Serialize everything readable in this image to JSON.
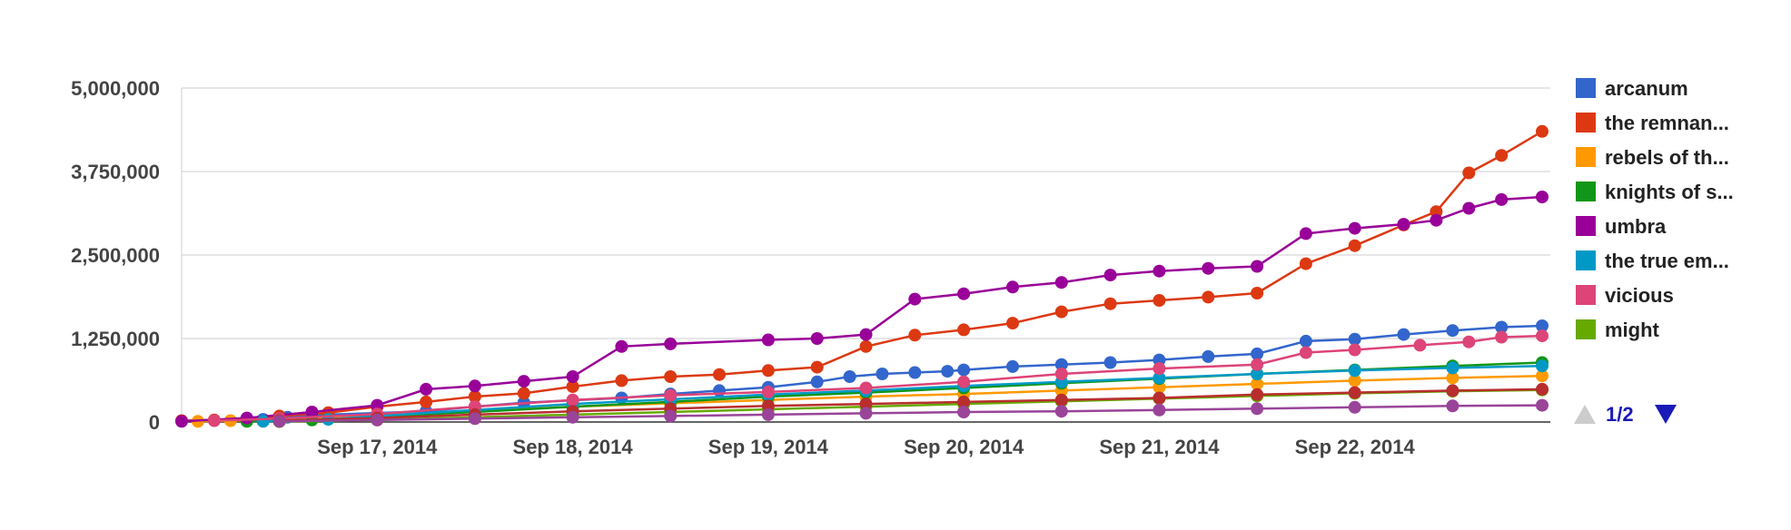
{
  "chart_data": {
    "type": "line",
    "title": "",
    "xlabel": "",
    "ylabel": "",
    "x_tick_labels": [
      "Sep 17, 2014",
      "Sep 18, 2014",
      "Sep 19, 2014",
      "Sep 20, 2014",
      "Sep 21, 2014",
      "Sep 22, 2014"
    ],
    "y_tick_labels": [
      "0",
      "1,250,000",
      "2,500,000",
      "3,750,000",
      "5,000,000"
    ],
    "y_ticks": [
      0,
      1250000,
      2500000,
      3750000,
      5000000
    ],
    "ylim": [
      0,
      5000000
    ],
    "xlim": [
      "2014-09-16",
      "2014-09-22"
    ],
    "grid": true,
    "legend_position": "right",
    "legend_page": "1/2",
    "series": [
      {
        "name": "arcanum",
        "color": "#3366cc",
        "points": [
          [
            "2014-09-16T08:00",
            20000
          ],
          [
            "2014-09-16T10:00",
            40000
          ],
          [
            "2014-09-16T13:00",
            70000
          ],
          [
            "2014-09-16T18:00",
            110000
          ],
          [
            "2014-09-17T06:00",
            160000
          ],
          [
            "2014-09-17T12:00",
            230000
          ],
          [
            "2014-09-17T18:00",
            290000
          ],
          [
            "2014-09-18T06:00",
            360000
          ],
          [
            "2014-09-18T12:00",
            420000
          ],
          [
            "2014-09-18T18:00",
            470000
          ],
          [
            "2014-09-19T00:00",
            520000
          ],
          [
            "2014-09-19T06:00",
            600000
          ],
          [
            "2014-09-19T10:00",
            680000
          ],
          [
            "2014-09-19T14:00",
            720000
          ],
          [
            "2014-09-19T18:00",
            740000
          ],
          [
            "2014-09-19T22:00",
            760000
          ],
          [
            "2014-09-20T00:00",
            780000
          ],
          [
            "2014-09-20T06:00",
            830000
          ],
          [
            "2014-09-20T12:00",
            860000
          ],
          [
            "2014-09-20T18:00",
            890000
          ],
          [
            "2014-09-21T00:00",
            930000
          ],
          [
            "2014-09-21T06:00",
            980000
          ],
          [
            "2014-09-21T12:00",
            1020000
          ],
          [
            "2014-09-21T18:00",
            1210000
          ],
          [
            "2014-09-22T00:00",
            1240000
          ],
          [
            "2014-09-22T06:00",
            1310000
          ],
          [
            "2014-09-22T12:00",
            1370000
          ],
          [
            "2014-09-22T18:00",
            1420000
          ],
          [
            "2014-09-22T23:00",
            1440000
          ]
        ]
      },
      {
        "name": "the remnan...",
        "color": "#dc3912",
        "points": [
          [
            "2014-09-16T00:00",
            20000
          ],
          [
            "2014-09-16T04:00",
            30000
          ],
          [
            "2014-09-16T08:00",
            50000
          ],
          [
            "2014-09-16T12:00",
            90000
          ],
          [
            "2014-09-16T18:00",
            140000
          ],
          [
            "2014-09-17T00:00",
            230000
          ],
          [
            "2014-09-17T06:00",
            300000
          ],
          [
            "2014-09-17T12:00",
            380000
          ],
          [
            "2014-09-17T18:00",
            430000
          ],
          [
            "2014-09-18T00:00",
            530000
          ],
          [
            "2014-09-18T06:00",
            620000
          ],
          [
            "2014-09-18T12:00",
            680000
          ],
          [
            "2014-09-18T18:00",
            710000
          ],
          [
            "2014-09-19T00:00",
            770000
          ],
          [
            "2014-09-19T06:00",
            820000
          ],
          [
            "2014-09-19T12:00",
            1130000
          ],
          [
            "2014-09-19T18:00",
            1300000
          ],
          [
            "2014-09-20T00:00",
            1380000
          ],
          [
            "2014-09-20T06:00",
            1480000
          ],
          [
            "2014-09-20T12:00",
            1650000
          ],
          [
            "2014-09-20T18:00",
            1770000
          ],
          [
            "2014-09-21T00:00",
            1820000
          ],
          [
            "2014-09-21T06:00",
            1870000
          ],
          [
            "2014-09-21T12:00",
            1930000
          ],
          [
            "2014-09-21T18:00",
            2370000
          ],
          [
            "2014-09-22T00:00",
            2640000
          ],
          [
            "2014-09-22T06:00",
            2950000
          ],
          [
            "2014-09-22T10:00",
            3150000
          ],
          [
            "2014-09-22T14:00",
            3730000
          ],
          [
            "2014-09-22T18:00",
            3990000
          ],
          [
            "2014-09-22T23:00",
            4350000
          ]
        ]
      },
      {
        "name": "rebels of th...",
        "color": "#ff9900",
        "points": [
          [
            "2014-09-16T02:00",
            10000
          ],
          [
            "2014-09-16T06:00",
            20000
          ],
          [
            "2014-09-16T12:00",
            40000
          ],
          [
            "2014-09-17T00:00",
            100000
          ],
          [
            "2014-09-17T12:00",
            160000
          ],
          [
            "2014-09-18T00:00",
            230000
          ],
          [
            "2014-09-18T12:00",
            280000
          ],
          [
            "2014-09-19T00:00",
            330000
          ],
          [
            "2014-09-19T12:00",
            380000
          ],
          [
            "2014-09-20T00:00",
            420000
          ],
          [
            "2014-09-20T12:00",
            470000
          ],
          [
            "2014-09-21T00:00",
            520000
          ],
          [
            "2014-09-21T12:00",
            570000
          ],
          [
            "2014-09-22T00:00",
            620000
          ],
          [
            "2014-09-22T12:00",
            660000
          ],
          [
            "2014-09-22T23:00",
            690000
          ]
        ]
      },
      {
        "name": "knights of s...",
        "color": "#109618",
        "points": [
          [
            "2014-09-16T08:00",
            10000
          ],
          [
            "2014-09-16T16:00",
            30000
          ],
          [
            "2014-09-17T00:00",
            80000
          ],
          [
            "2014-09-17T12:00",
            150000
          ],
          [
            "2014-09-18T00:00",
            230000
          ],
          [
            "2014-09-18T12:00",
            300000
          ],
          [
            "2014-09-19T00:00",
            380000
          ],
          [
            "2014-09-19T12:00",
            440000
          ],
          [
            "2014-09-20T00:00",
            510000
          ],
          [
            "2014-09-20T12:00",
            580000
          ],
          [
            "2014-09-21T00:00",
            650000
          ],
          [
            "2014-09-21T12:00",
            720000
          ],
          [
            "2014-09-22T00:00",
            780000
          ],
          [
            "2014-09-22T12:00",
            840000
          ],
          [
            "2014-09-22T23:00",
            890000
          ]
        ]
      },
      {
        "name": "umbra",
        "color": "#990099",
        "points": [
          [
            "2014-09-16T00:00",
            10000
          ],
          [
            "2014-09-16T08:00",
            60000
          ],
          [
            "2014-09-16T16:00",
            150000
          ],
          [
            "2014-09-17T00:00",
            250000
          ],
          [
            "2014-09-17T06:00",
            490000
          ],
          [
            "2014-09-17T12:00",
            540000
          ],
          [
            "2014-09-17T18:00",
            610000
          ],
          [
            "2014-09-18T00:00",
            680000
          ],
          [
            "2014-09-18T06:00",
            1130000
          ],
          [
            "2014-09-18T12:00",
            1170000
          ],
          [
            "2014-09-19T00:00",
            1230000
          ],
          [
            "2014-09-19T06:00",
            1250000
          ],
          [
            "2014-09-19T12:00",
            1310000
          ],
          [
            "2014-09-19T18:00",
            1840000
          ],
          [
            "2014-09-20T00:00",
            1920000
          ],
          [
            "2014-09-20T06:00",
            2020000
          ],
          [
            "2014-09-20T12:00",
            2090000
          ],
          [
            "2014-09-20T18:00",
            2200000
          ],
          [
            "2014-09-21T00:00",
            2260000
          ],
          [
            "2014-09-21T06:00",
            2300000
          ],
          [
            "2014-09-21T12:00",
            2330000
          ],
          [
            "2014-09-21T18:00",
            2820000
          ],
          [
            "2014-09-22T00:00",
            2900000
          ],
          [
            "2014-09-22T06:00",
            2960000
          ],
          [
            "2014-09-22T10:00",
            3020000
          ],
          [
            "2014-09-22T14:00",
            3200000
          ],
          [
            "2014-09-22T18:00",
            3330000
          ],
          [
            "2014-09-22T23:00",
            3370000
          ]
        ]
      },
      {
        "name": "the true em...",
        "color": "#0099c6",
        "points": [
          [
            "2014-09-16T10:00",
            10000
          ],
          [
            "2014-09-16T18:00",
            40000
          ],
          [
            "2014-09-17T00:00",
            90000
          ],
          [
            "2014-09-17T12:00",
            180000
          ],
          [
            "2014-09-18T00:00",
            270000
          ],
          [
            "2014-09-18T12:00",
            340000
          ],
          [
            "2014-09-19T00:00",
            410000
          ],
          [
            "2014-09-19T12:00",
            470000
          ],
          [
            "2014-09-20T00:00",
            540000
          ],
          [
            "2014-09-20T12:00",
            600000
          ],
          [
            "2014-09-21T00:00",
            660000
          ],
          [
            "2014-09-21T12:00",
            720000
          ],
          [
            "2014-09-22T00:00",
            770000
          ],
          [
            "2014-09-22T12:00",
            810000
          ],
          [
            "2014-09-22T23:00",
            840000
          ]
        ]
      },
      {
        "name": "vicious",
        "color": "#dd4477",
        "points": [
          [
            "2014-09-16T04:00",
            20000
          ],
          [
            "2014-09-16T12:00",
            50000
          ],
          [
            "2014-09-17T00:00",
            120000
          ],
          [
            "2014-09-17T12:00",
            230000
          ],
          [
            "2014-09-18T00:00",
            330000
          ],
          [
            "2014-09-18T12:00",
            400000
          ],
          [
            "2014-09-19T00:00",
            450000
          ],
          [
            "2014-09-19T12:00",
            510000
          ],
          [
            "2014-09-20T00:00",
            600000
          ],
          [
            "2014-09-20T12:00",
            720000
          ],
          [
            "2014-09-21T00:00",
            800000
          ],
          [
            "2014-09-21T12:00",
            860000
          ],
          [
            "2014-09-21T18:00",
            1040000
          ],
          [
            "2014-09-22T00:00",
            1080000
          ],
          [
            "2014-09-22T08:00",
            1150000
          ],
          [
            "2014-09-22T14:00",
            1200000
          ],
          [
            "2014-09-22T18:00",
            1270000
          ],
          [
            "2014-09-22T23:00",
            1290000
          ]
        ]
      },
      {
        "name": "might",
        "color": "#66aa00",
        "points": [
          [
            "2014-09-16T12:00",
            5000
          ],
          [
            "2014-09-17T00:00",
            30000
          ],
          [
            "2014-09-17T12:00",
            70000
          ],
          [
            "2014-09-18T00:00",
            110000
          ],
          [
            "2014-09-18T12:00",
            150000
          ],
          [
            "2014-09-19T00:00",
            190000
          ],
          [
            "2014-09-19T12:00",
            230000
          ],
          [
            "2014-09-20T00:00",
            270000
          ],
          [
            "2014-09-20T12:00",
            310000
          ],
          [
            "2014-09-21T00:00",
            350000
          ],
          [
            "2014-09-21T12:00",
            390000
          ],
          [
            "2014-09-22T00:00",
            430000
          ],
          [
            "2014-09-22T12:00",
            460000
          ],
          [
            "2014-09-22T23:00",
            480000
          ]
        ]
      },
      {
        "name": "",
        "color": "#b82e2e",
        "points": [
          [
            "2014-09-16T12:00",
            20000
          ],
          [
            "2014-09-17T00:00",
            60000
          ],
          [
            "2014-09-17T12:00",
            110000
          ],
          [
            "2014-09-18T00:00",
            160000
          ],
          [
            "2014-09-18T12:00",
            200000
          ],
          [
            "2014-09-19T00:00",
            240000
          ],
          [
            "2014-09-19T12:00",
            270000
          ],
          [
            "2014-09-20T00:00",
            300000
          ],
          [
            "2014-09-20T12:00",
            330000
          ],
          [
            "2014-09-21T00:00",
            360000
          ],
          [
            "2014-09-21T12:00",
            410000
          ],
          [
            "2014-09-22T00:00",
            440000
          ],
          [
            "2014-09-22T12:00",
            470000
          ],
          [
            "2014-09-22T23:00",
            490000
          ]
        ]
      },
      {
        "name": "",
        "color": "#994499",
        "points": [
          [
            "2014-09-16T12:00",
            10000
          ],
          [
            "2014-09-17T00:00",
            30000
          ],
          [
            "2014-09-17T12:00",
            50000
          ],
          [
            "2014-09-18T00:00",
            70000
          ],
          [
            "2014-09-18T12:00",
            90000
          ],
          [
            "2014-09-19T00:00",
            110000
          ],
          [
            "2014-09-19T12:00",
            130000
          ],
          [
            "2014-09-20T00:00",
            150000
          ],
          [
            "2014-09-20T12:00",
            160000
          ],
          [
            "2014-09-21T00:00",
            180000
          ],
          [
            "2014-09-21T12:00",
            200000
          ],
          [
            "2014-09-22T00:00",
            220000
          ],
          [
            "2014-09-22T12:00",
            240000
          ],
          [
            "2014-09-22T23:00",
            250000
          ]
        ]
      }
    ]
  }
}
